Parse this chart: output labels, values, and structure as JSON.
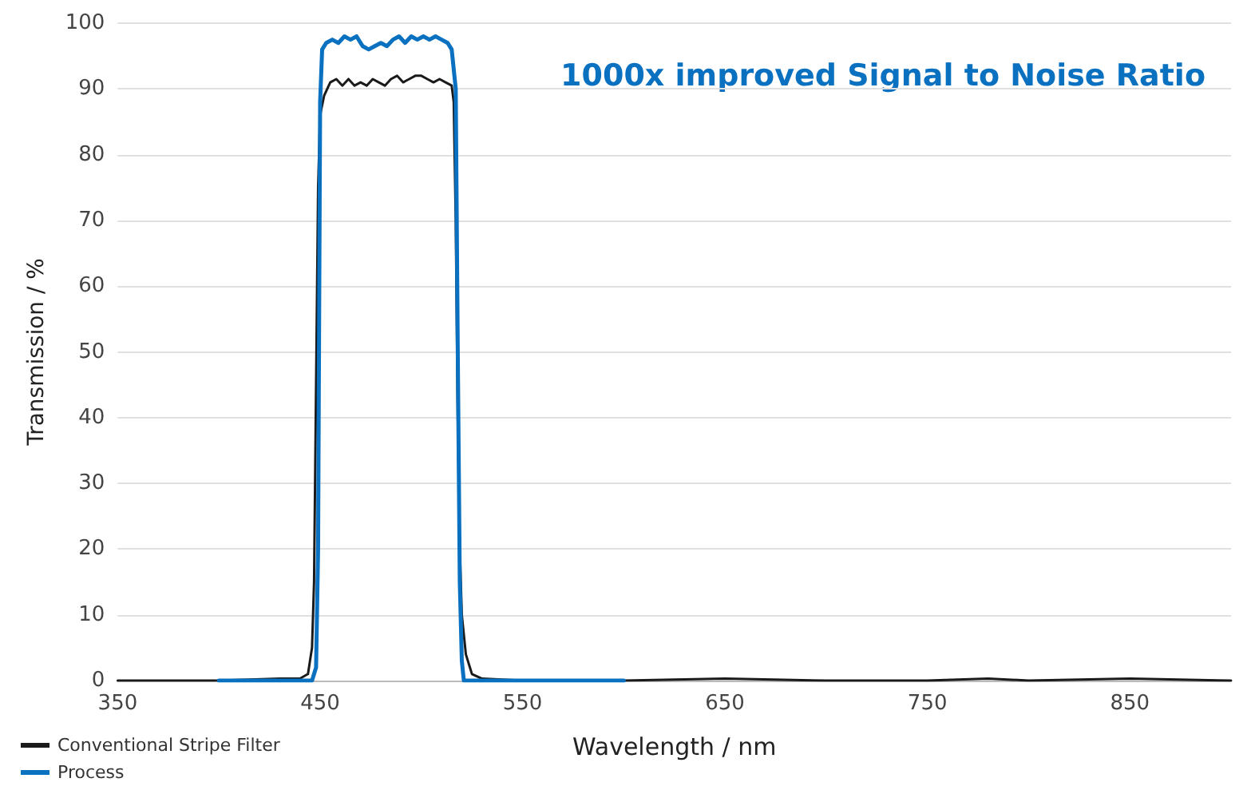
{
  "chart_data": {
    "type": "line",
    "xlabel": "Wavelength / nm",
    "ylabel": "Transmission / %",
    "annotations": [
      "1000x improved Signal to Noise Ratio"
    ],
    "xlim": [
      350,
      900
    ],
    "xticks": [
      350,
      450,
      550,
      650,
      750,
      850
    ],
    "ylim": [
      0,
      100
    ],
    "yticks": [
      0,
      10,
      20,
      30,
      40,
      50,
      60,
      70,
      80,
      90,
      100
    ],
    "grid": "y",
    "legend": "bottom left",
    "marker": "none",
    "line_style": "solid",
    "series": [
      {
        "name": "Conventional Stripe Filter",
        "color": "#1a1a1a",
        "x": [
          350,
          400,
          430,
          440,
          444,
          446,
          447,
          448,
          449,
          450,
          452,
          455,
          458,
          461,
          464,
          467,
          470,
          473,
          476,
          479,
          482,
          485,
          488,
          491,
          494,
          497,
          500,
          503,
          506,
          509,
          512,
          515,
          516,
          517,
          518,
          519,
          520,
          522,
          525,
          530,
          550,
          600,
          650,
          700,
          750,
          780,
          800,
          850,
          900
        ],
        "values": [
          0,
          0,
          0.3,
          0.3,
          1,
          5,
          15,
          45,
          75,
          86,
          89,
          91,
          91.5,
          90.5,
          91.5,
          90.5,
          91,
          90.5,
          91.5,
          91,
          90.5,
          91.5,
          92,
          91,
          91.5,
          92,
          92,
          91.5,
          91,
          91.5,
          91,
          90.5,
          88,
          70,
          40,
          20,
          10,
          4,
          1,
          0.3,
          0,
          0,
          0.3,
          0,
          0,
          0.3,
          0,
          0.3,
          0
        ]
      },
      {
        "name": "Process",
        "color": "#0a70c0",
        "x": [
          400,
          420,
          440,
          446,
          448,
          449,
          450,
          451,
          453,
          456,
          459,
          462,
          465,
          468,
          471,
          474,
          477,
          480,
          483,
          486,
          489,
          492,
          495,
          498,
          501,
          504,
          507,
          510,
          513,
          515,
          517,
          518,
          519,
          520,
          521,
          540,
          560,
          580,
          600
        ],
        "values": [
          0,
          0,
          0,
          0,
          2,
          20,
          88,
          96,
          97,
          97.5,
          97,
          98,
          97.5,
          98,
          96.5,
          96,
          96.5,
          97,
          96.5,
          97.5,
          98,
          97,
          98,
          97.5,
          98,
          97.5,
          98,
          97.5,
          97,
          96,
          90,
          50,
          15,
          3,
          0,
          0,
          0,
          0,
          0
        ]
      }
    ]
  }
}
